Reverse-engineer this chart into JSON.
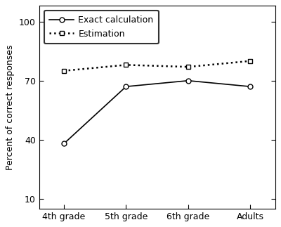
{
  "x_labels": [
    "4th grade",
    "5th grade",
    "6th grade",
    "Adults"
  ],
  "exact_calc": [
    38,
    67,
    70,
    67
  ],
  "estimation": [
    75,
    78,
    77,
    80
  ],
  "x_positions": [
    0,
    1,
    2,
    3
  ],
  "yticks": [
    10,
    40,
    70,
    100
  ],
  "ylim": [
    5,
    108
  ],
  "xlim": [
    -0.4,
    3.4
  ],
  "ylabel": "Percent of correct responses",
  "legend_exact": "Exact calculation",
  "legend_estimation": "Estimation",
  "line_color": "#000000",
  "bg_color": "#ffffff",
  "axis_fontsize": 9,
  "tick_fontsize": 9,
  "legend_fontsize": 9,
  "linewidth_exact": 1.2,
  "linewidth_est": 1.8,
  "markersize": 5
}
